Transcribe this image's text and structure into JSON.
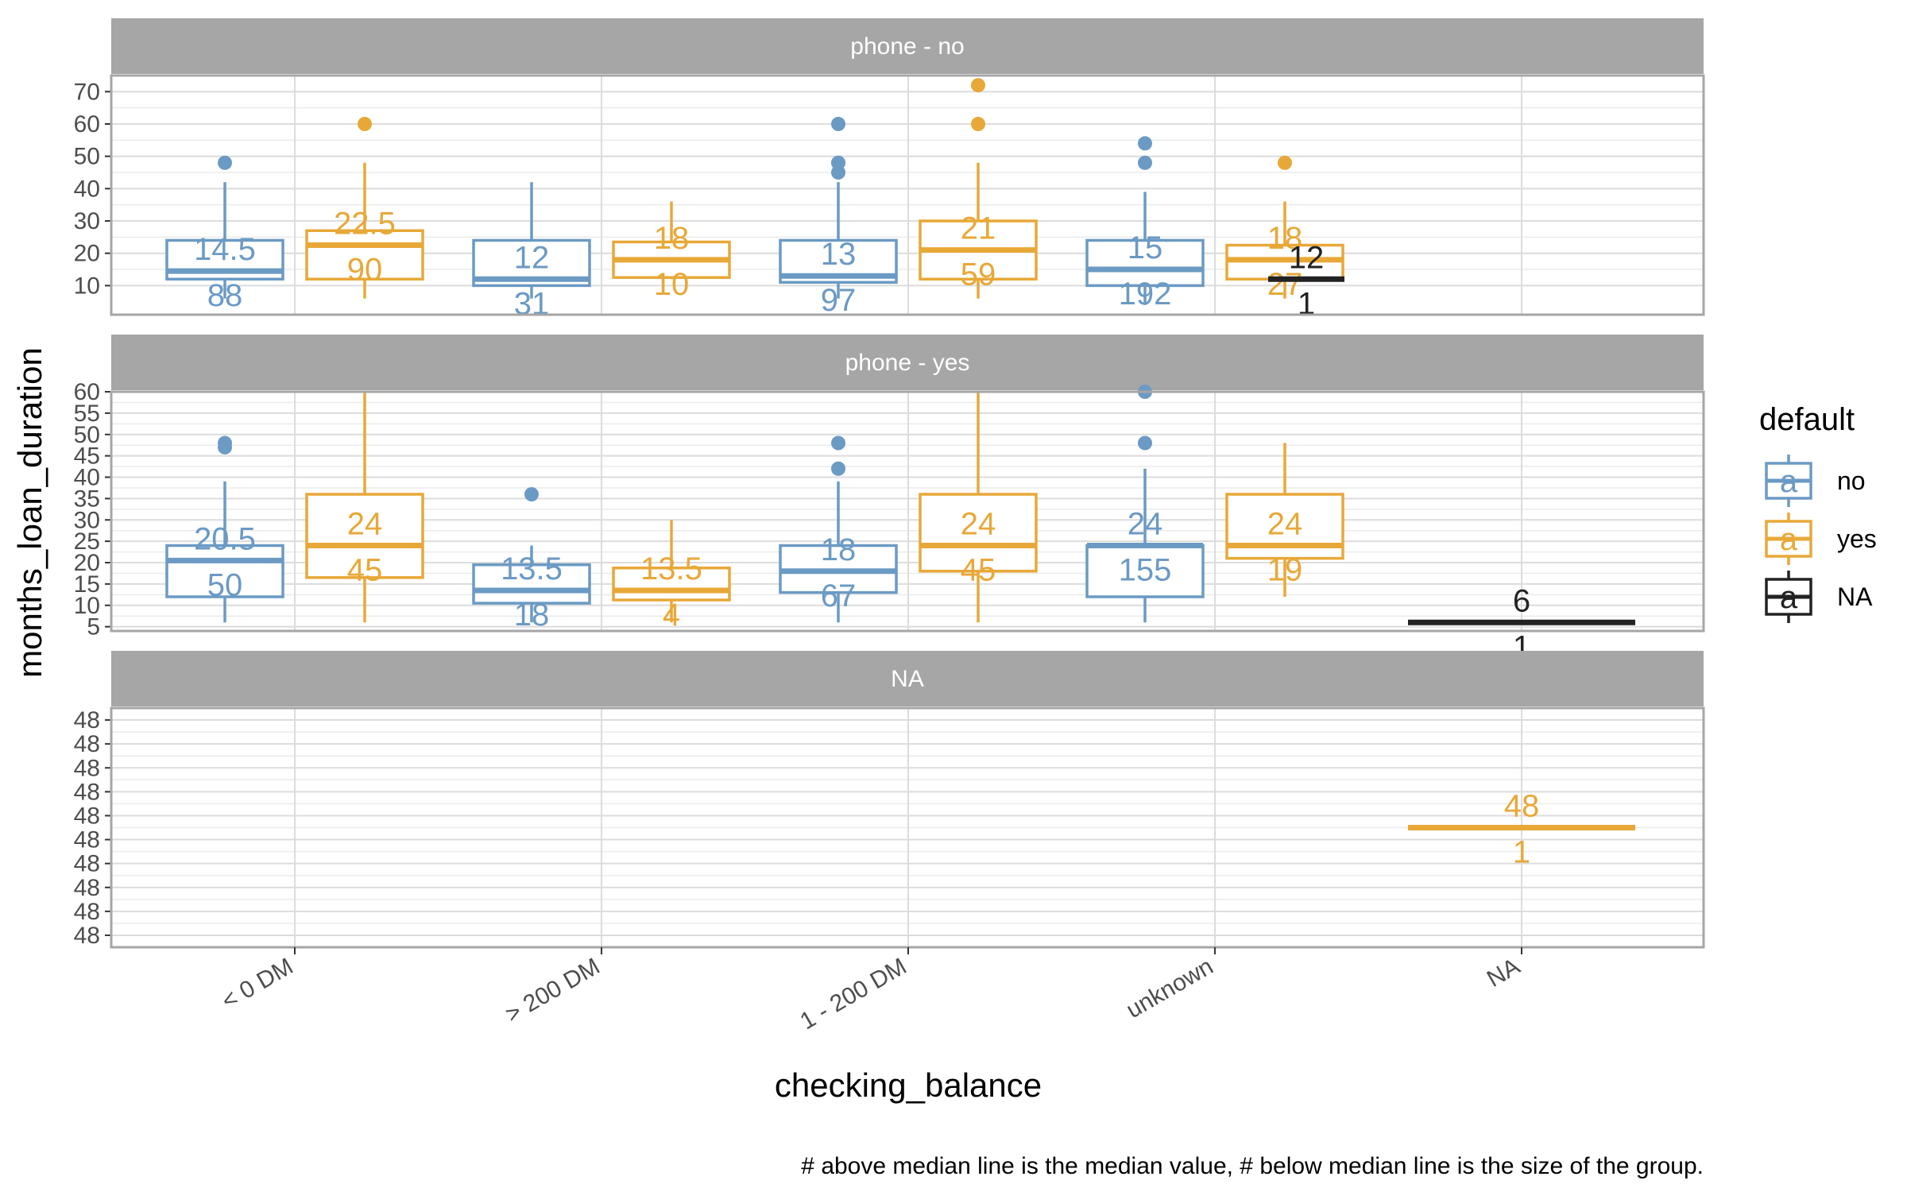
{
  "chart_data": {
    "type": "boxplot",
    "xlabel": "checking_balance",
    "ylabel": "months_loan_duration",
    "caption": "# above median line is the median value, # below median line is the size of the group.",
    "categories": [
      "< 0 DM",
      "> 200 DM",
      "1 - 200 DM",
      "unknown",
      "NA"
    ],
    "legend": {
      "title": "default",
      "position": "right",
      "entries": [
        {
          "name": "no",
          "color": "#6B9AC4"
        },
        {
          "name": "yes",
          "color": "#E8A838"
        },
        {
          "name": "NA",
          "color": "#222222"
        }
      ]
    },
    "colors": {
      "no": "#6B9AC4",
      "yes": "#E8A838",
      "NA": "#222222",
      "strip": "#A6A6A6",
      "grid": "#DCDCDC",
      "border": "#A6A6A6"
    },
    "grid": true,
    "panels": [
      {
        "title": "phone - no",
        "ylim": [
          1,
          75
        ],
        "yticks": [
          10,
          20,
          30,
          40,
          50,
          60,
          70
        ],
        "ytick_labels": [
          "10",
          "20",
          "30",
          "40",
          "50",
          "60",
          "70"
        ],
        "boxes": [
          {
            "category": "< 0 DM",
            "group": "no",
            "whisker_low": 6,
            "q1": 12,
            "median": 14.5,
            "q3": 24,
            "whisker_high": 42,
            "outliers": [
              48
            ],
            "median_label": "14.5",
            "n_label": "88"
          },
          {
            "category": "< 0 DM",
            "group": "yes",
            "whisker_low": 6,
            "q1": 12,
            "median": 22.5,
            "q3": 27,
            "whisker_high": 48,
            "outliers": [
              60
            ],
            "median_label": "22.5",
            "n_label": "90"
          },
          {
            "category": "> 200 DM",
            "group": "no",
            "whisker_low": 6,
            "q1": 10,
            "median": 12,
            "q3": 24,
            "whisker_high": 42,
            "outliers": [],
            "median_label": "12",
            "n_label": "31"
          },
          {
            "category": "> 200 DM",
            "group": "yes",
            "whisker_low": 12,
            "q1": 12.5,
            "median": 18,
            "q3": 23.5,
            "whisker_high": 36,
            "outliers": [],
            "median_label": "18",
            "n_label": "10"
          },
          {
            "category": "1 - 200 DM",
            "group": "no",
            "whisker_low": 6,
            "q1": 11,
            "median": 13,
            "q3": 24,
            "whisker_high": 42,
            "outliers": [
              45,
              48,
              48,
              60
            ],
            "median_label": "13",
            "n_label": "97"
          },
          {
            "category": "1 - 200 DM",
            "group": "yes",
            "whisker_low": 6,
            "q1": 12,
            "median": 21,
            "q3": 30,
            "whisker_high": 48,
            "outliers": [
              60,
              72
            ],
            "median_label": "21",
            "n_label": "59"
          },
          {
            "category": "unknown",
            "group": "no",
            "whisker_low": 4,
            "q1": 10,
            "median": 15,
            "q3": 24,
            "whisker_high": 39,
            "outliers": [
              48,
              54
            ],
            "median_label": "15",
            "n_label": "192"
          },
          {
            "category": "unknown",
            "group": "yes",
            "whisker_low": 6,
            "q1": 12,
            "median": 18,
            "q3": 22.5,
            "whisker_high": 36,
            "outliers": [
              48
            ],
            "median_label": "18",
            "n_label": "27"
          },
          {
            "category": "unknown",
            "group": "NA",
            "whisker_low": 12,
            "q1": 12,
            "median": 12,
            "q3": 12,
            "whisker_high": 12,
            "outliers": [],
            "median_label": "12",
            "n_label": "1"
          }
        ]
      },
      {
        "title": "phone - yes",
        "ylim": [
          4,
          60
        ],
        "yticks": [
          5,
          10,
          15,
          20,
          25,
          30,
          35,
          40,
          45,
          50,
          55,
          60
        ],
        "ytick_labels": [
          "5",
          "10",
          "15",
          "20",
          "25",
          "30",
          "35",
          "40",
          "45",
          "50",
          "55",
          "60"
        ],
        "boxes": [
          {
            "category": "< 0 DM",
            "group": "no",
            "whisker_low": 6,
            "q1": 12,
            "median": 20.5,
            "q3": 24,
            "whisker_high": 39,
            "outliers": [
              47,
              48
            ],
            "median_label": "20.5",
            "n_label": "50"
          },
          {
            "category": "< 0 DM",
            "group": "yes",
            "whisker_low": 6,
            "q1": 16.5,
            "median": 24,
            "q3": 36,
            "whisker_high": 60,
            "outliers": [],
            "median_label": "24",
            "n_label": "45"
          },
          {
            "category": "> 200 DM",
            "group": "no",
            "whisker_low": 6,
            "q1": 10.5,
            "median": 13.5,
            "q3": 19.5,
            "whisker_high": 24,
            "outliers": [
              36
            ],
            "median_label": "13.5",
            "n_label": "18"
          },
          {
            "category": "> 200 DM",
            "group": "yes",
            "whisker_low": 6,
            "q1": 11.25,
            "median": 13.5,
            "q3": 18.75,
            "whisker_high": 30,
            "outliers": [],
            "median_label": "13.5",
            "n_label": "4"
          },
          {
            "category": "1 - 200 DM",
            "group": "no",
            "whisker_low": 6,
            "q1": 13,
            "median": 18,
            "q3": 24,
            "whisker_high": 39,
            "outliers": [
              42,
              48
            ],
            "median_label": "18",
            "n_label": "67"
          },
          {
            "category": "1 - 200 DM",
            "group": "yes",
            "whisker_low": 6,
            "q1": 18,
            "median": 24,
            "q3": 36,
            "whisker_high": 60,
            "outliers": [],
            "median_label": "24",
            "n_label": "45"
          },
          {
            "category": "unknown",
            "group": "no",
            "whisker_low": 6,
            "q1": 12,
            "median": 24,
            "q3": 24,
            "whisker_high": 42,
            "outliers": [
              48,
              60
            ],
            "median_label": "24",
            "n_label": "155"
          },
          {
            "category": "unknown",
            "group": "yes",
            "whisker_low": 12,
            "q1": 21,
            "median": 24,
            "q3": 36,
            "whisker_high": 48,
            "outliers": [],
            "median_label": "24",
            "n_label": "19"
          },
          {
            "category": "NA",
            "group": "NA",
            "whisker_low": 6,
            "q1": 6,
            "median": 6,
            "q3": 6,
            "whisker_high": 6,
            "outliers": [],
            "median_label": "6",
            "n_label": "1"
          }
        ]
      },
      {
        "title": "NA",
        "ylim": [
          47.5,
          48.5
        ],
        "yticks": [
          47.55,
          47.65,
          47.75,
          47.85,
          47.95,
          48.05,
          48.15,
          48.25,
          48.35,
          48.45
        ],
        "ytick_labels": [
          "48",
          "48",
          "48",
          "48",
          "48",
          "48",
          "48",
          "48",
          "48",
          "48"
        ],
        "boxes": [
          {
            "category": "NA",
            "group": "yes",
            "whisker_low": 48,
            "q1": 48,
            "median": 48,
            "q3": 48,
            "whisker_high": 48,
            "outliers": [],
            "median_label": "48",
            "n_label": "1"
          }
        ]
      }
    ]
  }
}
